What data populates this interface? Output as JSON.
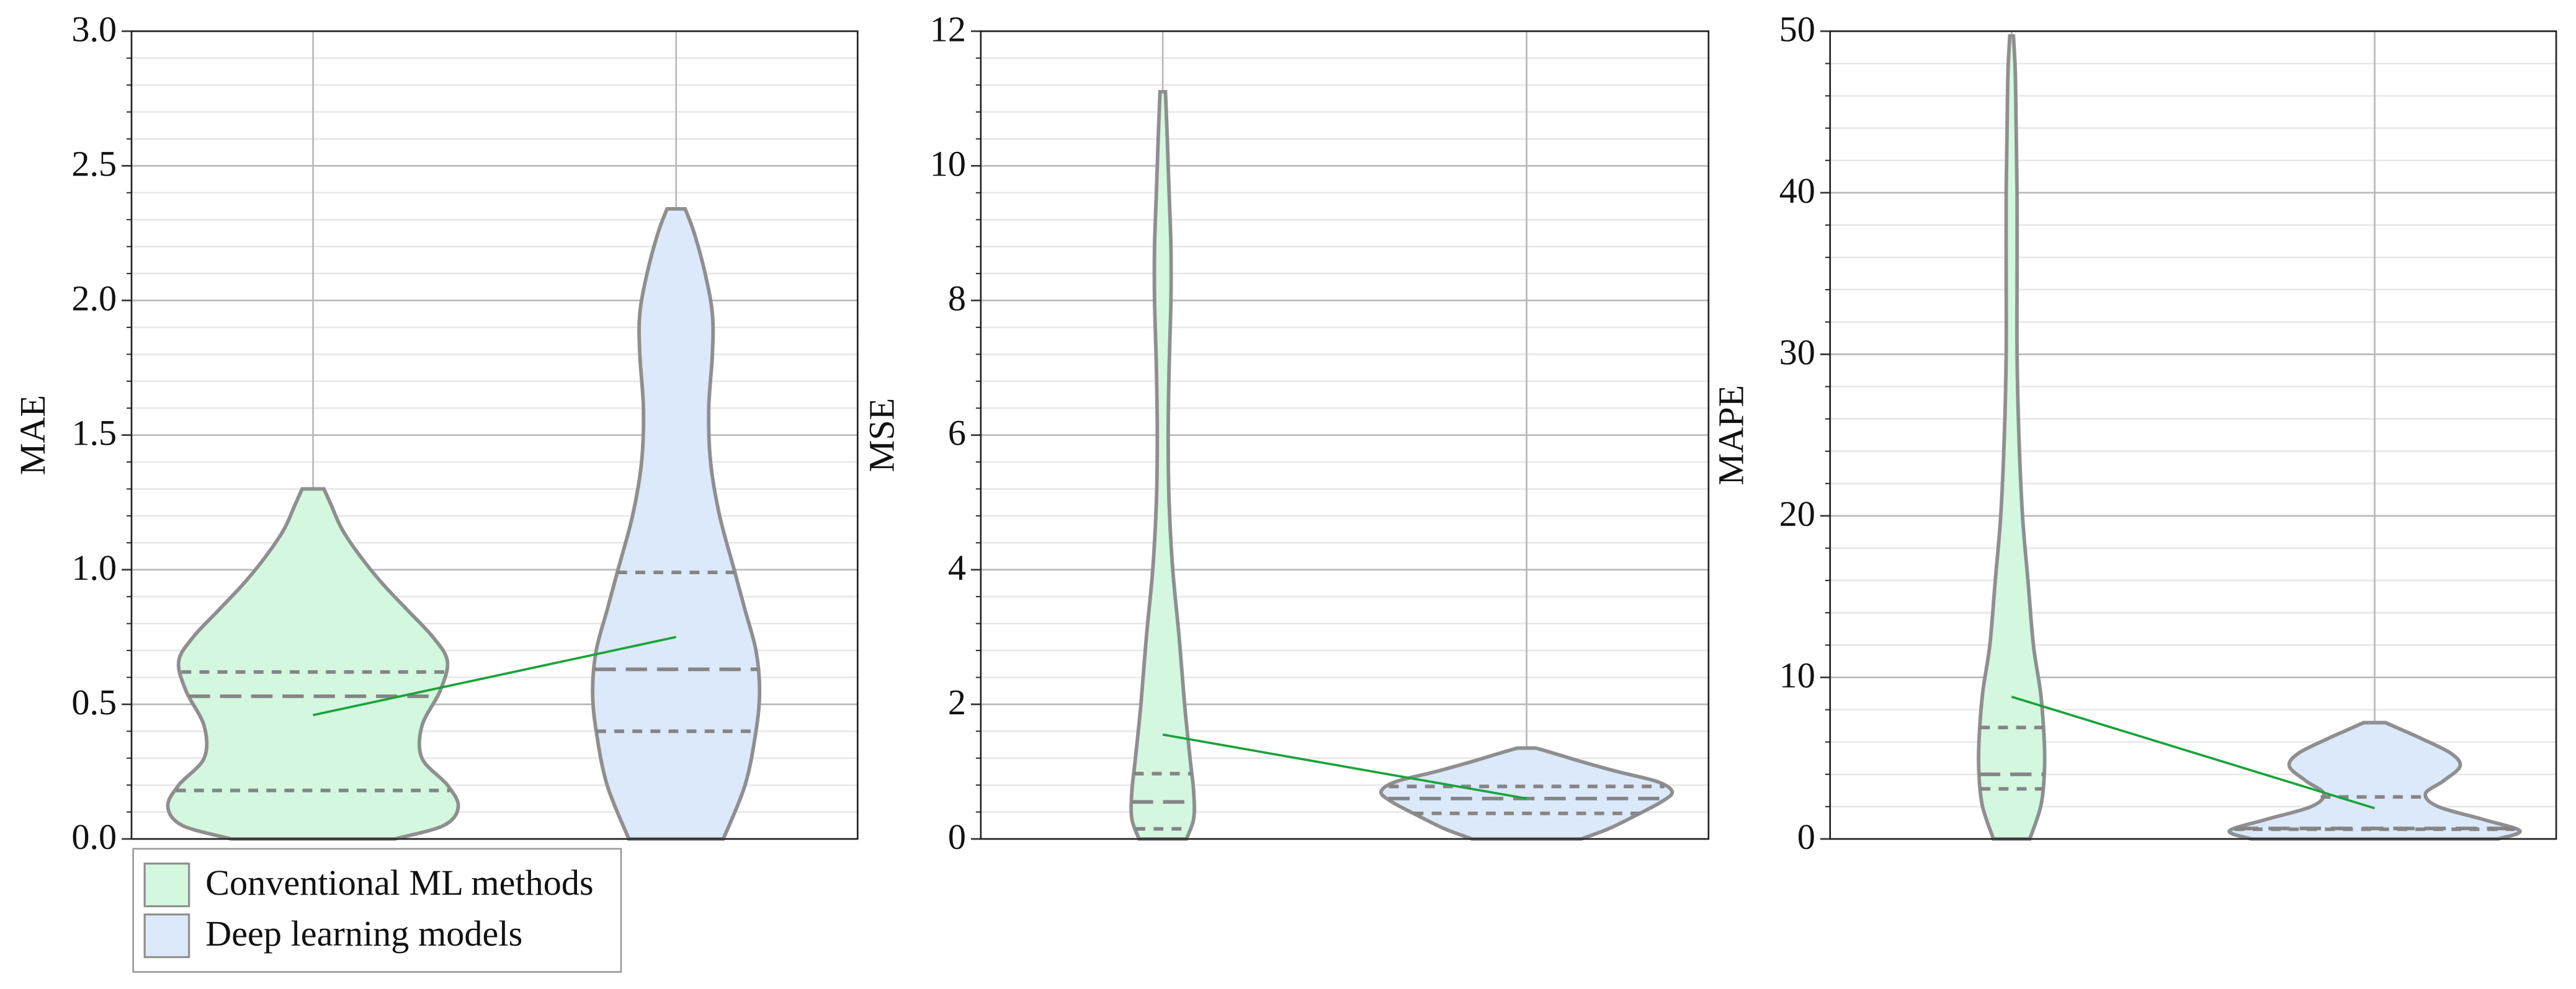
{
  "chart_data": [
    {
      "type": "violin",
      "ylabel": "MAE",
      "ylim": [
        0,
        3
      ],
      "yticks": [
        {
          "value": 0,
          "label": "0.0"
        },
        0.5,
        {
          "value": 1,
          "label": "1.0"
        },
        1.5,
        {
          "value": 2,
          "label": "2.0"
        },
        2.5,
        {
          "value": 3,
          "label": "3.0"
        }
      ],
      "minor_divisions": 5,
      "grid": true,
      "legend": "lower left outside",
      "mean_line_color": "#1aa33a",
      "series": [
        {
          "name": "Conventional ML methods",
          "color": "#d4f7e0",
          "q1": 0.18,
          "median": 0.53,
          "q3": 0.62,
          "mean": 0.46,
          "profile": {
            "y": [
              0,
              0.05,
              0.12,
              0.2,
              0.3,
              0.42,
              0.55,
              0.66,
              0.75,
              0.85,
              0.95,
              1.05,
              1.15,
              1.24,
              1.3
            ],
            "width": [
              0.45,
              0.72,
              0.8,
              0.74,
              0.6,
              0.6,
              0.7,
              0.74,
              0.66,
              0.52,
              0.38,
              0.26,
              0.16,
              0.1,
              0.06
            ]
          }
        },
        {
          "name": "Deep learning models",
          "color": "#dbe9fb",
          "q1": 0.4,
          "median": 0.63,
          "q3": 0.99,
          "mean": 0.75,
          "profile": {
            "y": [
              0,
              0.2,
              0.4,
              0.55,
              0.7,
              0.85,
              1.0,
              1.2,
              1.4,
              1.6,
              1.8,
              1.95,
              2.1,
              2.25,
              2.34
            ],
            "width": [
              0.26,
              0.38,
              0.44,
              0.46,
              0.44,
              0.38,
              0.32,
              0.24,
              0.19,
              0.18,
              0.2,
              0.2,
              0.16,
              0.1,
              0.05
            ]
          }
        }
      ]
    },
    {
      "type": "violin",
      "ylabel": "MSE",
      "ylim": [
        0,
        12
      ],
      "yticks": [
        0,
        2,
        4,
        6,
        8,
        10,
        12
      ],
      "minor_divisions": 5,
      "grid": true,
      "mean_line_color": "#1aa33a",
      "series": [
        {
          "color": "#d4f7e0",
          "q1": 0.15,
          "median": 0.55,
          "q3": 0.97,
          "mean": 1.55,
          "profile": {
            "y": [
              0,
              0.3,
              0.7,
              1.2,
              2,
              3,
              4,
              5,
              6,
              7,
              8,
              8.8,
              9.6,
              10.4,
              11.1
            ],
            "width": [
              0.13,
              0.17,
              0.17,
              0.15,
              0.12,
              0.09,
              0.055,
              0.035,
              0.03,
              0.035,
              0.045,
              0.045,
              0.035,
              0.025,
              0.015
            ]
          }
        },
        {
          "color": "#dbe9fb",
          "q1": 0.38,
          "median": 0.6,
          "q3": 0.78,
          "mean": 0.6,
          "profile": {
            "y": [
              0,
              0.15,
              0.35,
              0.55,
              0.7,
              0.85,
              1.0,
              1.15,
              1.28,
              1.35
            ],
            "width": [
              0.3,
              0.45,
              0.6,
              0.74,
              0.8,
              0.72,
              0.5,
              0.3,
              0.14,
              0.05
            ]
          }
        }
      ]
    },
    {
      "type": "violin",
      "ylabel": "MAPE",
      "ylim": [
        0,
        50
      ],
      "yticks": [
        0,
        10,
        20,
        30,
        40,
        50
      ],
      "minor_divisions": 5,
      "grid": true,
      "mean_line_color": "#1aa33a",
      "series": [
        {
          "color": "#d4f7e0",
          "q1": 3.1,
          "median": 4.0,
          "q3": 6.9,
          "mean": 8.8,
          "profile": {
            "y": [
              0,
              2,
              4,
              6,
              9,
              12,
              16,
              20,
              25,
              30,
              35,
              40,
              44,
              47.5,
              49.7
            ],
            "width": [
              0.1,
              0.16,
              0.18,
              0.18,
              0.16,
              0.12,
              0.09,
              0.06,
              0.04,
              0.03,
              0.03,
              0.03,
              0.025,
              0.02,
              0.01
            ]
          }
        },
        {
          "color": "#dbe9fb",
          "q1": 0.6,
          "median": 0.65,
          "q3": 2.6,
          "mean": 1.9,
          "profile": {
            "y": [
              0,
              0.5,
              1.2,
              2.0,
              2.8,
              3.6,
              4.5,
              5.3,
              6.2,
              6.8,
              7.2
            ],
            "width": [
              0.68,
              0.8,
              0.6,
              0.35,
              0.28,
              0.38,
              0.47,
              0.42,
              0.26,
              0.14,
              0.06
            ]
          }
        }
      ]
    }
  ]
}
